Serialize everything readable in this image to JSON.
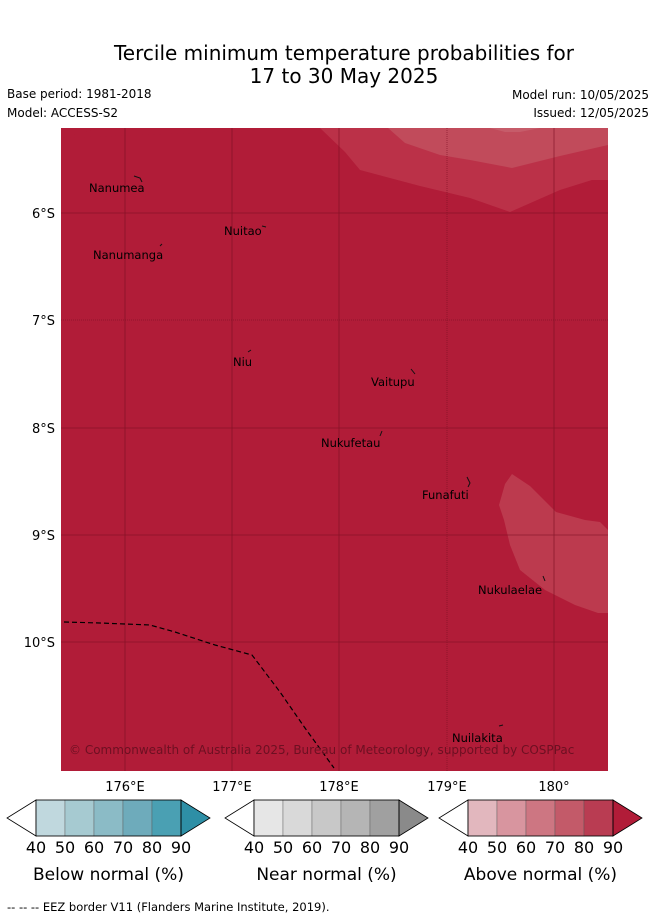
{
  "title_line1": "Tercile minimum temperature probabilities for",
  "title_line2": "17 to 30 May 2025",
  "base_period": "Base period: 1981-2018",
  "model": "Model: ACCESS-S2",
  "model_run": "Model run: 10/05/2025",
  "issued": "Issued: 12/05/2025",
  "lat_labels": [
    "6°S",
    "7°S",
    "8°S",
    "9°S",
    "10°S"
  ],
  "lon_labels": [
    "176°E",
    "177°E",
    "178°E",
    "179°E",
    "180°"
  ],
  "places": [
    "Nanumea",
    "Nuitao",
    "Nanumanga",
    "Niu",
    "Vaitupu",
    "Nukufetau",
    "Funafuti",
    "Nukulaelae",
    "Nuilakita"
  ],
  "copyright": "© Commonwealth of Australia 2025, Bureau of Meteorology, supported by COSPPac",
  "colorbars": [
    {
      "title": "Below normal (%)",
      "ticks": [
        "40",
        "50",
        "60",
        "70",
        "80",
        "90"
      ],
      "colors": [
        "#c0d8de",
        "#a6cad1",
        "#8bbbc6",
        "#6eabbb",
        "#4aa0b3",
        "#2e8fa6"
      ]
    },
    {
      "title": "Near normal (%)",
      "ticks": [
        "40",
        "50",
        "60",
        "70",
        "80",
        "90"
      ],
      "colors": [
        "#e6e6e6",
        "#d9d9d9",
        "#c8c8c8",
        "#b5b5b5",
        "#a0a0a0",
        "#8a8a8a"
      ]
    },
    {
      "title": "Above normal (%)",
      "ticks": [
        "40",
        "50",
        "60",
        "70",
        "80",
        "90"
      ],
      "colors": [
        "#e2b7be",
        "#d8959f",
        "#cd7682",
        "#c35a69",
        "#b93c52",
        "#b11c38"
      ]
    }
  ],
  "footer": "--  --  -- EEZ border V11 (Flanders Marine Institute, 2019)."
}
